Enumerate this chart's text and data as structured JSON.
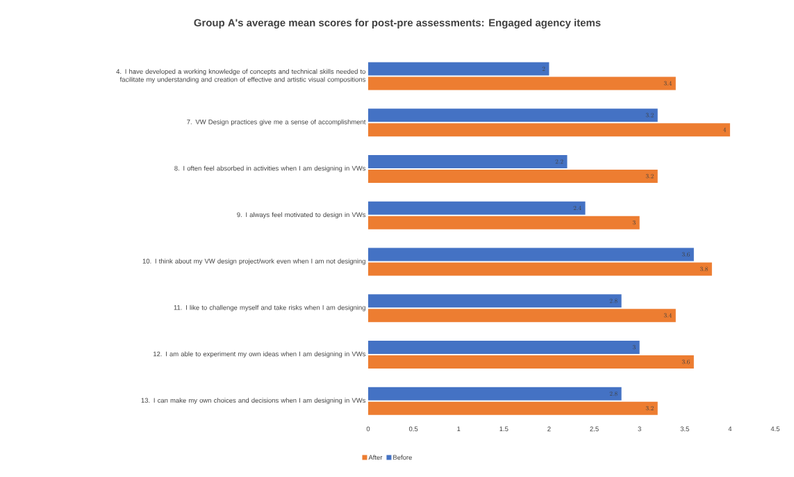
{
  "chart_data": {
    "type": "bar",
    "orientation": "horizontal",
    "title": "Group A's average mean scores for post-pre assessments: Engaged agency items",
    "categories": [
      "4. I have developed a working knowledge of concepts and technical skills needed to facilitate my understanding and creation of effective and artistic visual compositions",
      "7. VW Design practices give me a sense of accomplishment",
      "8. I often feel absorbed in activities when I am designing in VWs",
      "9. I always feel motivated to design in VWs",
      "10. I think about my VW design project/work even when I am not designing",
      "11. I like to challenge myself and take risks when I am designing",
      "12. I am able to experiment my own ideas when I am designing in VWs",
      "13. I can make my own choices and decisions when I am designing in VWs"
    ],
    "series": [
      {
        "name": "After",
        "color": "#ed7d31",
        "values": [
          3.4,
          4,
          3.2,
          3,
          3.8,
          3.4,
          3.6,
          3.2
        ]
      },
      {
        "name": "Before",
        "color": "#4472c4",
        "values": [
          2,
          3.2,
          2.2,
          2.4,
          3.6,
          2.8,
          3,
          2.8
        ]
      }
    ],
    "xlim": [
      0,
      4.5
    ],
    "xticks": [
      0,
      0.5,
      1,
      1.5,
      2,
      2.5,
      3,
      3.5,
      4,
      4.5
    ],
    "data_labels": true,
    "grid": false,
    "legend": "bottom left"
  }
}
